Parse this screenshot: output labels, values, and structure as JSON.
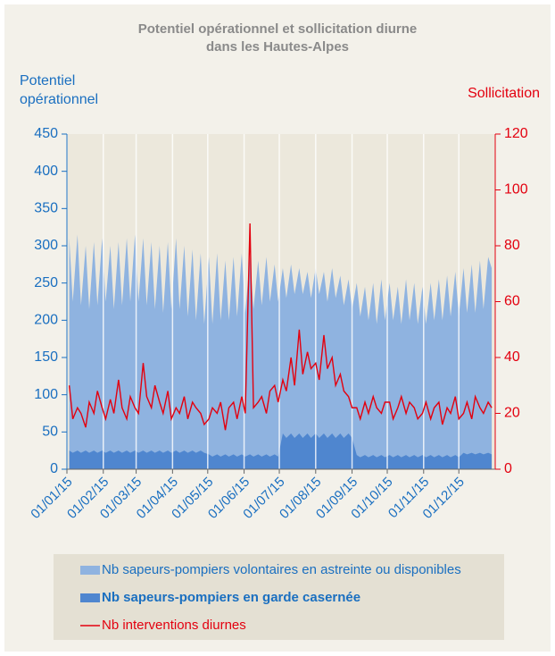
{
  "chart_data": {
    "type": "area-line",
    "title": [
      "Potentiel opérationnel et sollicitation diurne",
      "dans les Hautes-Alpes"
    ],
    "y_label": [
      "Potentiel",
      "opérationnel"
    ],
    "y2_label": "Sollicitation",
    "grid": true,
    "xlim": [
      0,
      365
    ],
    "xticks": [
      {
        "value": 0,
        "label": "01/01/15"
      },
      {
        "value": 31,
        "label": "01/02/15"
      },
      {
        "value": 59,
        "label": "01/03/15"
      },
      {
        "value": 90,
        "label": "01/04/15"
      },
      {
        "value": 120,
        "label": "01/05/15"
      },
      {
        "value": 151,
        "label": "01/06/15"
      },
      {
        "value": 181,
        "label": "01/07/15"
      },
      {
        "value": 212,
        "label": "01/08/15"
      },
      {
        "value": 243,
        "label": "01/09/15"
      },
      {
        "value": 273,
        "label": "01/10/15"
      },
      {
        "value": 304,
        "label": "01/11/15"
      },
      {
        "value": 334,
        "label": "01/12/15"
      }
    ],
    "ylim": [
      0,
      450
    ],
    "yticks": [
      0,
      50,
      100,
      150,
      200,
      250,
      300,
      350,
      400,
      450
    ],
    "y2lim": [
      0,
      120
    ],
    "y2ticks": [
      0,
      20,
      40,
      60,
      80,
      100,
      120
    ],
    "x": [
      2,
      5,
      9,
      12,
      16,
      19,
      23,
      26,
      30,
      33,
      37,
      40,
      44,
      47,
      51,
      54,
      58,
      61,
      65,
      68,
      72,
      75,
      79,
      82,
      86,
      89,
      93,
      96,
      100,
      103,
      107,
      110,
      114,
      117,
      121,
      124,
      128,
      131,
      135,
      138,
      142,
      145,
      149,
      152,
      156,
      159,
      163,
      166,
      170,
      173,
      177,
      180,
      184,
      187,
      191,
      194,
      198,
      201,
      205,
      208,
      212,
      215,
      219,
      222,
      226,
      229,
      233,
      236,
      240,
      243,
      247,
      250,
      254,
      257,
      261,
      264,
      268,
      271,
      275,
      278,
      282,
      285,
      289,
      292,
      296,
      299,
      303,
      306,
      310,
      313,
      317,
      320,
      324,
      327,
      331,
      334,
      338,
      341,
      345,
      348,
      352,
      355,
      359,
      362
    ],
    "series": [
      {
        "name": "Nb sapeurs-pompiers volontaires en astreinte ou disponibles",
        "color": "#8fb3e0",
        "kind": "area",
        "values": [
          310,
          225,
          315,
          220,
          300,
          215,
          305,
          220,
          310,
          225,
          300,
          215,
          305,
          220,
          310,
          225,
          315,
          225,
          310,
          220,
          305,
          215,
          300,
          210,
          305,
          215,
          310,
          215,
          300,
          205,
          295,
          200,
          290,
          195,
          285,
          195,
          290,
          200,
          280,
          200,
          285,
          205,
          290,
          210,
          285,
          215,
          280,
          220,
          285,
          225,
          275,
          225,
          270,
          230,
          275,
          235,
          270,
          235,
          265,
          230,
          270,
          235,
          265,
          225,
          270,
          230,
          260,
          220,
          255,
          215,
          250,
          205,
          245,
          200,
          250,
          195,
          255,
          200,
          250,
          200,
          245,
          195,
          255,
          200,
          250,
          195,
          245,
          195,
          250,
          200,
          255,
          200,
          260,
          205,
          265,
          205,
          270,
          210,
          275,
          210,
          280,
          215,
          285,
          270
        ]
      },
      {
        "name": "Nb sapeurs-pompiers en garde casernée",
        "color": "#4f86cf",
        "kind": "area",
        "values": [
          25,
          22,
          25,
          22,
          25,
          22,
          25,
          22,
          25,
          22,
          25,
          22,
          25,
          22,
          25,
          22,
          25,
          22,
          25,
          22,
          25,
          22,
          25,
          22,
          25,
          22,
          25,
          22,
          25,
          22,
          25,
          22,
          25,
          22,
          20,
          17,
          20,
          17,
          20,
          17,
          20,
          17,
          20,
          17,
          20,
          17,
          20,
          17,
          20,
          17,
          20,
          17,
          48,
          42,
          48,
          42,
          48,
          42,
          48,
          42,
          48,
          42,
          48,
          42,
          48,
          42,
          48,
          42,
          48,
          42,
          19,
          16,
          19,
          16,
          19,
          16,
          19,
          16,
          19,
          16,
          19,
          16,
          19,
          16,
          19,
          16,
          19,
          16,
          19,
          16,
          19,
          16,
          19,
          16,
          19,
          16,
          22,
          20,
          22,
          20,
          22,
          20,
          22,
          20
        ]
      },
      {
        "name": "Nb interventions diurnes",
        "color": "#e3000f",
        "kind": "line",
        "axis": "y2",
        "values": [
          30,
          18,
          22,
          20,
          15,
          24,
          20,
          28,
          22,
          18,
          25,
          20,
          32,
          22,
          18,
          26,
          22,
          20,
          38,
          26,
          22,
          30,
          24,
          20,
          28,
          18,
          22,
          20,
          26,
          18,
          24,
          22,
          20,
          16,
          18,
          22,
          20,
          24,
          14,
          22,
          24,
          18,
          26,
          20,
          88,
          22,
          24,
          26,
          20,
          28,
          30,
          24,
          32,
          28,
          40,
          30,
          50,
          34,
          42,
          36,
          38,
          32,
          48,
          36,
          40,
          30,
          34,
          28,
          26,
          22,
          22,
          18,
          24,
          20,
          26,
          22,
          20,
          24,
          24,
          18,
          22,
          26,
          20,
          24,
          22,
          18,
          20,
          24,
          18,
          22,
          24,
          16,
          22,
          20,
          26,
          18,
          20,
          24,
          18,
          26,
          22,
          20,
          24,
          22
        ]
      }
    ]
  }
}
